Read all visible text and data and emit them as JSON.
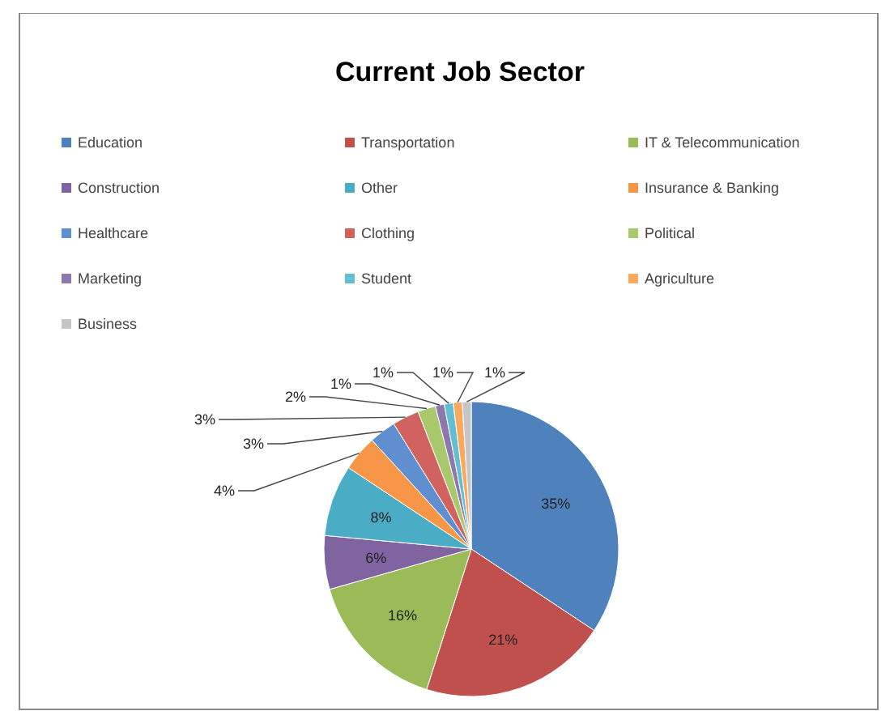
{
  "chart_data": {
    "type": "pie",
    "title": "Current Job Sector",
    "categories": [
      "Education",
      "Transportation",
      "IT & Telecommunication",
      "Construction",
      "Other",
      "Insurance & Banking",
      "Healthcare",
      "Clothing",
      "Political",
      "Marketing",
      "Student",
      "Agriculture",
      "Business"
    ],
    "values": [
      35,
      21,
      16,
      6,
      8,
      4,
      3,
      3,
      2,
      1,
      1,
      1,
      1
    ],
    "colors": [
      "#4f81bd",
      "#c0504d",
      "#9bbb59",
      "#8064a2",
      "#4bacc6",
      "#f79646",
      "#5f8fce",
      "#d0625f",
      "#a9c86c",
      "#8d78ad",
      "#63bdd3",
      "#f9a95d",
      "#c6c6c6"
    ],
    "value_labels": [
      "35%",
      "21%",
      "16%",
      "6%",
      "8%",
      "4%",
      "3%",
      "3%",
      "2%",
      "1%",
      "1%",
      "1%",
      "1%"
    ],
    "legend": "top"
  }
}
